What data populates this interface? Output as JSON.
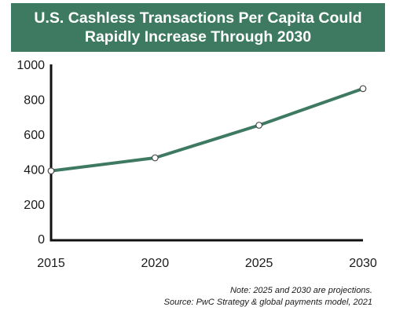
{
  "chart_data": {
    "type": "line",
    "title": "U.S. Cashless Transactions Per Capita Could",
    "title_line2": "Rapidly Increase Through 2030",
    "x": [
      2015,
      2020,
      2025,
      2030
    ],
    "series": [
      {
        "values": [
          398,
          473,
          660,
          870
        ]
      }
    ],
    "x_ticks": [
      "2015",
      "2020",
      "2025",
      "2030"
    ],
    "y_ticks": [
      "0",
      "200",
      "400",
      "600",
      "800",
      "1000"
    ],
    "ylim": [
      0,
      1000
    ],
    "xlabel": "",
    "ylabel": "",
    "grid": false,
    "line_color": "#3e7a62",
    "banner_color": "#3e7a62"
  },
  "notes": {
    "note": "Note: 2025 and 2030 are projections.",
    "source": "Source: PwC Strategy & global payments model, 2021"
  }
}
